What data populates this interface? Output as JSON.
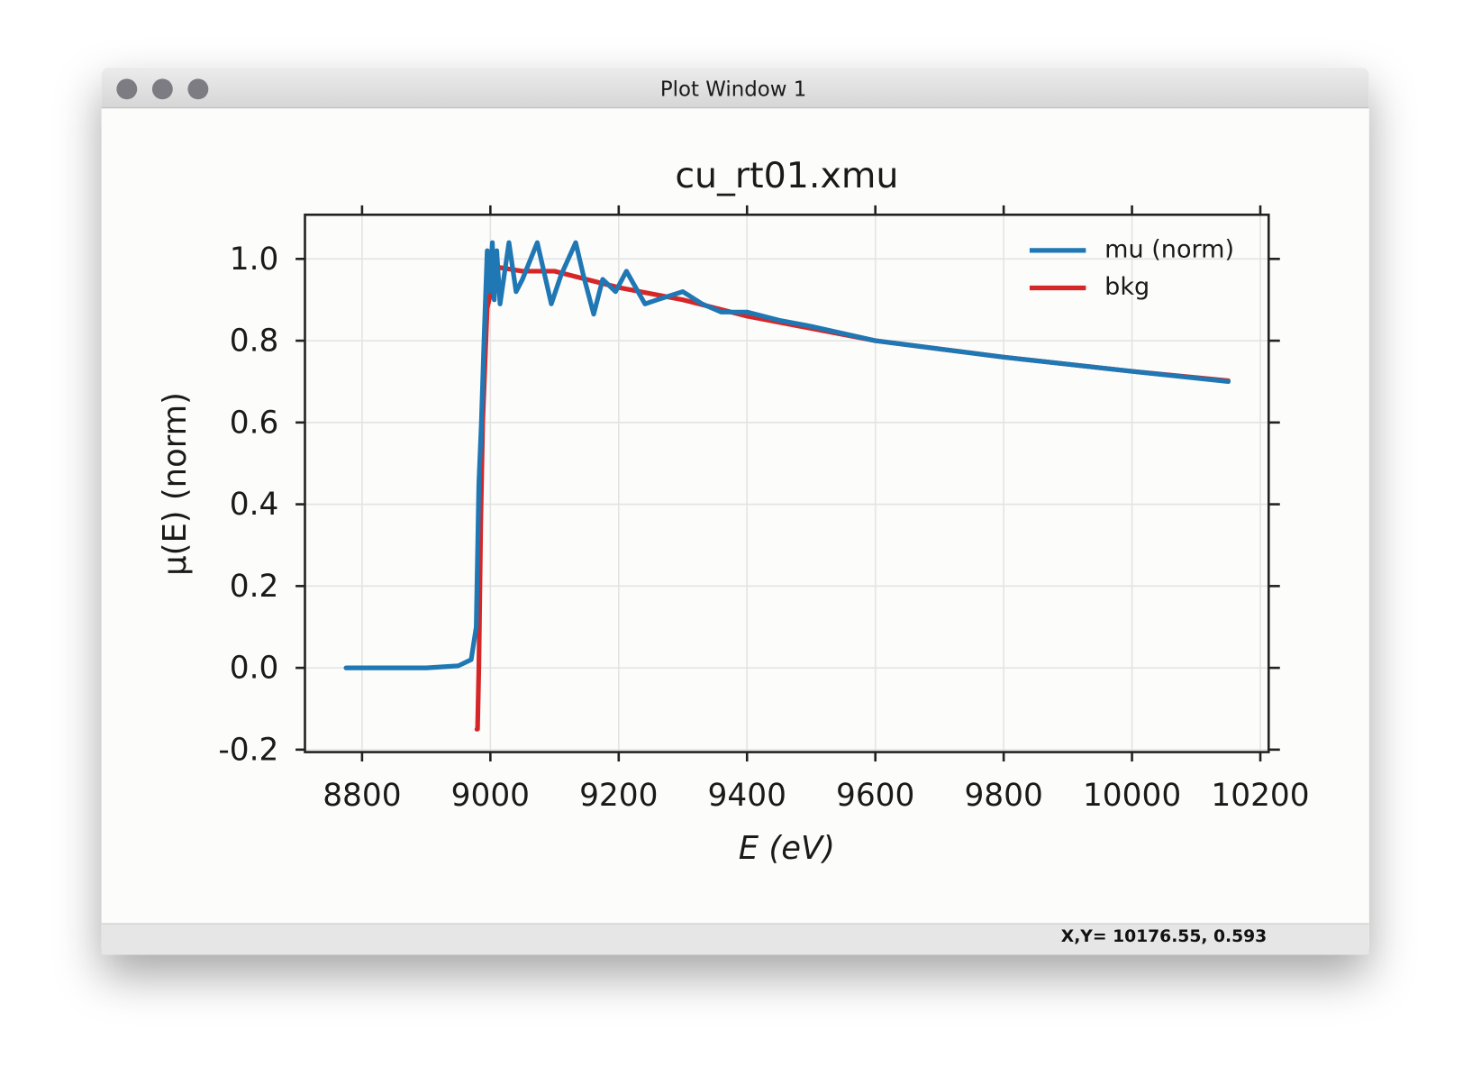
{
  "window": {
    "title": "Plot Window 1",
    "status": "X,Y= 10176.55, 0.593"
  },
  "chart_data": {
    "type": "line",
    "title": "cu_rt01.xmu",
    "x_label": "E (eV)",
    "y_label": "μ(E) (norm)",
    "xlim": [
      8711,
      10213
    ],
    "ylim": [
      -0.206,
      1.108
    ],
    "xticks": [
      8800,
      9000,
      9200,
      9400,
      9600,
      9800,
      10000,
      10200
    ],
    "yticks": [
      -0.2,
      {
        "value": 0,
        "label": "0.0"
      },
      0.2,
      0.4,
      0.6,
      0.8,
      {
        "value": 1,
        "label": "1.0"
      }
    ],
    "grid": true,
    "legend": "upper right",
    "series": [
      {
        "name": "bkg",
        "color": "#d62728",
        "x": [
          8979,
          8980,
          8982,
          8985,
          8988,
          8995,
          9010,
          9050,
          9100,
          9200,
          9300,
          9400,
          9500,
          9600,
          9800,
          10000,
          10150
        ],
        "values": [
          -0.15,
          -0.15,
          0.0,
          0.35,
          0.6,
          0.88,
          0.98,
          0.97,
          0.97,
          0.93,
          0.9,
          0.86,
          0.83,
          0.8,
          0.76,
          0.725,
          0.702
        ]
      },
      {
        "name": "mu (norm)",
        "color": "#1f77b4",
        "x": [
          8775,
          8800,
          8850,
          8900,
          8950,
          8970,
          8978,
          8982,
          8986,
          8990,
          8995,
          8998,
          9003,
          9006,
          9010,
          9015,
          9029,
          9040,
          9050,
          9073,
          9095,
          9110,
          9133,
          9145,
          9161,
          9175,
          9195,
          9212,
          9241,
          9260,
          9300,
          9330,
          9360,
          9400,
          9450,
          9500,
          9600,
          9800,
          10000,
          10150
        ],
        "values": [
          0,
          0,
          0,
          0,
          0.005,
          0.02,
          0.1,
          0.45,
          0.6,
          0.8,
          1.02,
          0.92,
          1.04,
          0.9,
          1.02,
          0.89,
          1.04,
          0.92,
          0.95,
          1.04,
          0.89,
          0.96,
          1.04,
          0.96,
          0.865,
          0.95,
          0.92,
          0.97,
          0.89,
          0.9,
          0.92,
          0.89,
          0.87,
          0.87,
          0.85,
          0.835,
          0.8,
          0.76,
          0.725,
          0.7
        ]
      }
    ]
  }
}
